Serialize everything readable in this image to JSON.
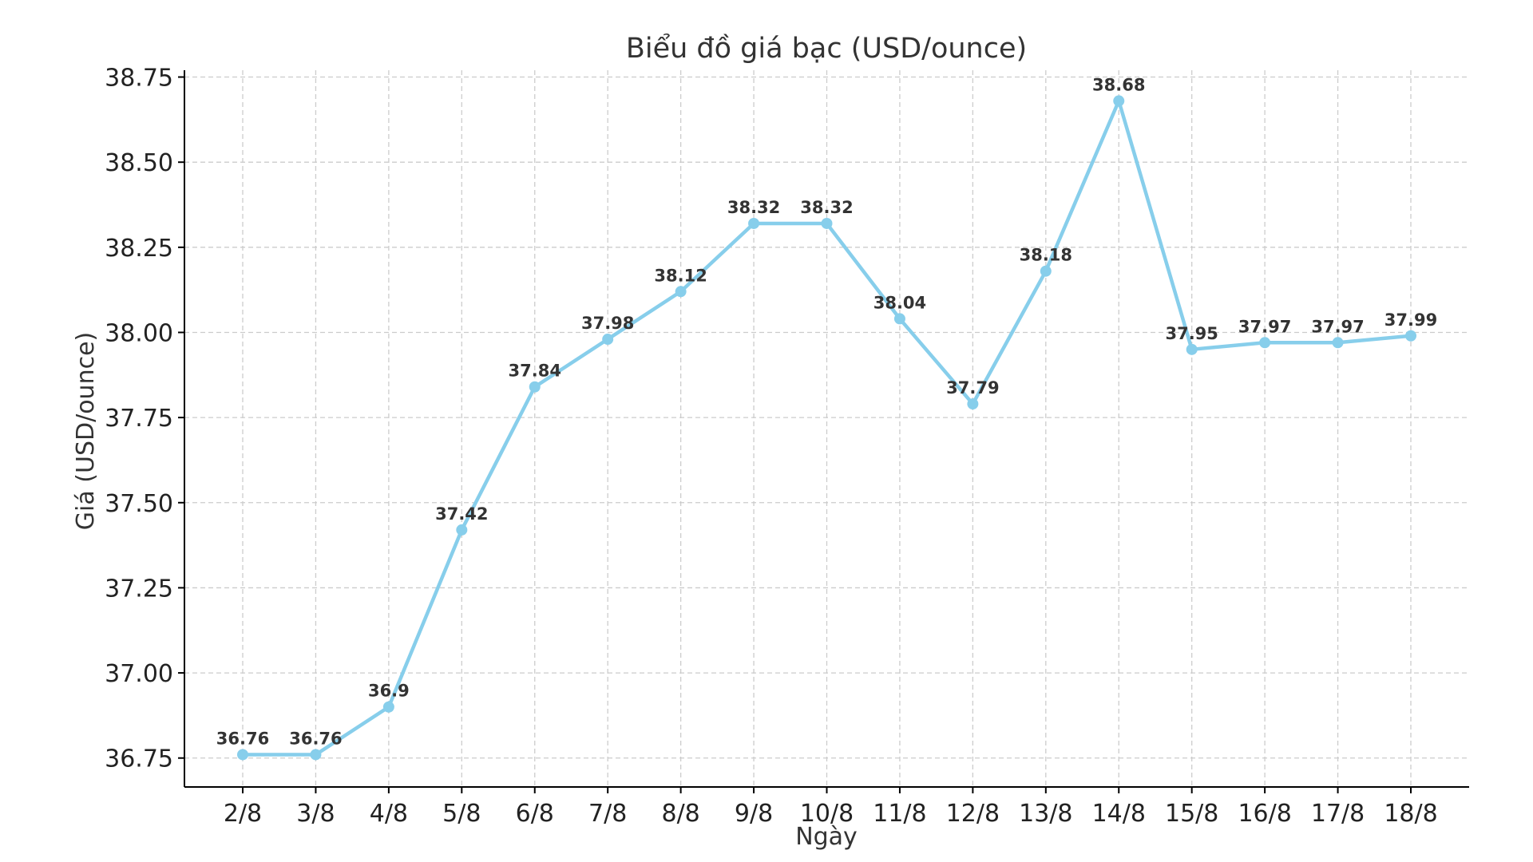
{
  "chart_data": {
    "type": "line",
    "title": "Biểu đồ giá bạc (USD/ounce)",
    "xlabel": "Ngày",
    "ylabel": "Giá (USD/ounce)",
    "categories": [
      "2/8",
      "3/8",
      "4/8",
      "5/8",
      "6/8",
      "7/8",
      "8/8",
      "9/8",
      "10/8",
      "11/8",
      "12/8",
      "13/8",
      "14/8",
      "15/8",
      "16/8",
      "17/8",
      "18/8"
    ],
    "series": [
      {
        "values": [
          36.76,
          36.76,
          36.9,
          37.42,
          37.84,
          37.98,
          38.12,
          38.32,
          38.32,
          38.04,
          37.79,
          38.18,
          38.68,
          37.95,
          37.97,
          37.97,
          37.99
        ],
        "labels": [
          "36.76",
          "36.76",
          "36.9",
          "37.42",
          "37.84",
          "37.98",
          "38.12",
          "38.32",
          "38.32",
          "38.04",
          "37.79",
          "38.18",
          "38.68",
          "37.95",
          "37.97",
          "37.97",
          "37.99"
        ],
        "color": "#87CEEB"
      }
    ],
    "yticks": [
      "36.75",
      "37.00",
      "37.25",
      "37.50",
      "37.75",
      "38.00",
      "38.25",
      "38.50",
      "38.75"
    ],
    "ytick_values": [
      36.75,
      37.0,
      37.25,
      37.5,
      37.75,
      38.0,
      38.25,
      38.5,
      38.75
    ],
    "ylim": [
      36.665,
      38.77
    ],
    "grid": true,
    "legend": "none"
  }
}
